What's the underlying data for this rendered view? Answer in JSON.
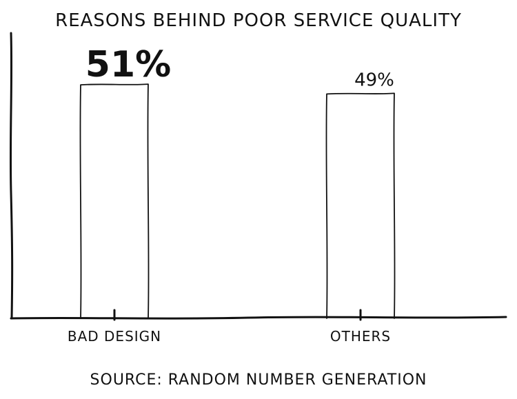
{
  "chart_data": {
    "type": "bar",
    "title": "REASONS BEHIND POOR SERVICE QUALITY",
    "categories": [
      "BAD DESIGN",
      "OTHERS"
    ],
    "values": [
      51,
      49
    ],
    "data_labels": [
      "51%",
      "49%"
    ],
    "xlabel": "",
    "ylabel": "",
    "ylim": [
      0,
      62
    ],
    "grid": false,
    "legend": "none",
    "source": "SOURCE: RANDOM NUMBER GENERATION"
  }
}
